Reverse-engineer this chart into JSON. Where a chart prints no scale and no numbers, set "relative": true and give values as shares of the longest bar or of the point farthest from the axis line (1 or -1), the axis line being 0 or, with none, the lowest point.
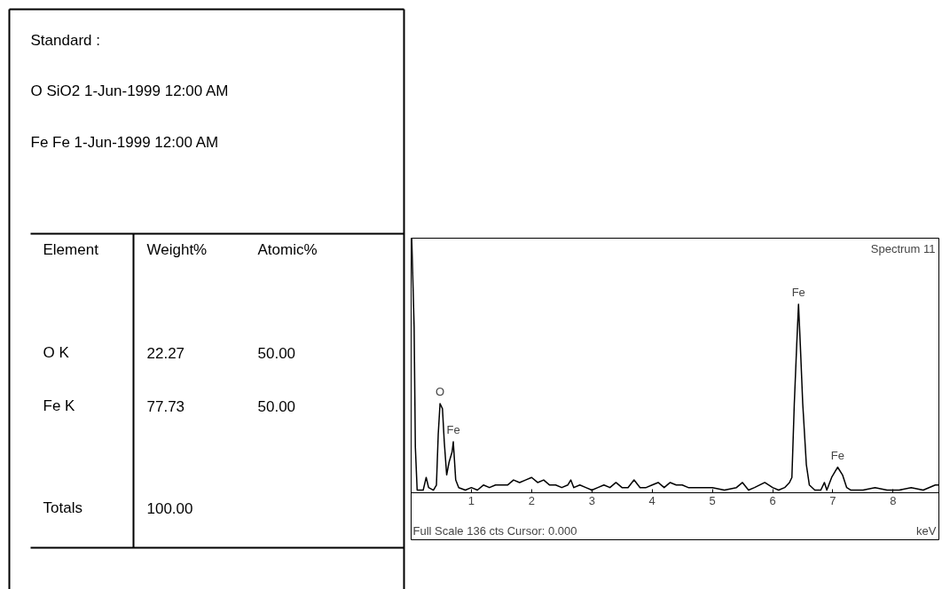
{
  "chart_data": [
    {
      "type": "other",
      "annotations": [
        "Standard :",
        "O SiO2 1-Jun-1999 12:00 AM",
        "Fe Fe 1-Jun-1999 12:00 AM",
        "Element",
        "Weight%",
        "Atomic%",
        "O K",
        "22.27",
        "50.00",
        "Fe K",
        "77.73",
        "50.00",
        "Totals",
        "100.00"
      ]
    },
    {
      "type": "line",
      "relative": true,
      "xlabel": "keV",
      "xlim": [
        0,
        8.76
      ],
      "xticks": [
        1,
        2,
        3,
        4,
        5,
        6,
        7,
        8
      ],
      "grid": false,
      "marker": "none",
      "line_style": "solid",
      "annotations": [
        "Spectrum 11",
        "Full Scale 136 cts Cursor: 0.000",
        {
          "text": "O",
          "x": 0.48,
          "y": 0.35
        },
        {
          "text": "Fe",
          "x": 0.7,
          "y": 0.2
        },
        {
          "text": "Fe",
          "x": 6.43,
          "y": 0.74
        },
        {
          "text": "Fe",
          "x": 7.08,
          "y": 0.1
        }
      ],
      "series": [
        {
          "color": "#000000",
          "x": [
            0.01,
            0.05,
            0.07,
            0.1,
            0.2,
            0.25,
            0.29,
            0.37,
            0.42,
            0.45,
            0.48,
            0.52,
            0.55,
            0.59,
            0.63,
            0.68,
            0.7,
            0.74,
            0.79,
            0.9,
            1.0,
            1.1,
            1.2,
            1.3,
            1.4,
            1.5,
            1.6,
            1.7,
            1.8,
            1.9,
            2.0,
            2.1,
            2.2,
            2.3,
            2.4,
            2.5,
            2.6,
            2.65,
            2.7,
            2.8,
            2.9,
            3.0,
            3.1,
            3.2,
            3.3,
            3.4,
            3.5,
            3.6,
            3.7,
            3.8,
            3.9,
            4.0,
            4.1,
            4.2,
            4.3,
            4.4,
            4.5,
            4.6,
            4.8,
            5.0,
            5.2,
            5.4,
            5.5,
            5.6,
            5.7,
            5.87,
            6.0,
            6.1,
            6.2,
            6.28,
            6.32,
            6.36,
            6.4,
            6.43,
            6.46,
            6.5,
            6.56,
            6.61,
            6.7,
            6.8,
            6.86,
            6.9,
            6.98,
            7.03,
            7.08,
            7.16,
            7.23,
            7.3,
            7.5,
            7.7,
            7.9,
            8.1,
            8.3,
            8.5,
            8.7,
            8.76
          ],
          "values": [
            1.0,
            0.65,
            0.18,
            0.01,
            0.01,
            0.06,
            0.02,
            0.01,
            0.03,
            0.23,
            0.35,
            0.33,
            0.2,
            0.07,
            0.12,
            0.16,
            0.2,
            0.05,
            0.02,
            0.01,
            0.02,
            0.01,
            0.03,
            0.02,
            0.03,
            0.03,
            0.03,
            0.05,
            0.04,
            0.05,
            0.06,
            0.04,
            0.05,
            0.03,
            0.03,
            0.02,
            0.03,
            0.05,
            0.02,
            0.03,
            0.02,
            0.01,
            0.02,
            0.03,
            0.02,
            0.04,
            0.02,
            0.02,
            0.05,
            0.02,
            0.02,
            0.03,
            0.04,
            0.02,
            0.04,
            0.03,
            0.03,
            0.02,
            0.02,
            0.02,
            0.01,
            0.02,
            0.04,
            0.01,
            0.02,
            0.04,
            0.02,
            0.01,
            0.02,
            0.04,
            0.06,
            0.35,
            0.58,
            0.74,
            0.58,
            0.35,
            0.11,
            0.03,
            0.01,
            0.01,
            0.04,
            0.01,
            0.06,
            0.08,
            0.1,
            0.07,
            0.02,
            0.01,
            0.01,
            0.02,
            0.01,
            0.01,
            0.02,
            0.01,
            0.03,
            0.03
          ]
        }
      ]
    }
  ]
}
